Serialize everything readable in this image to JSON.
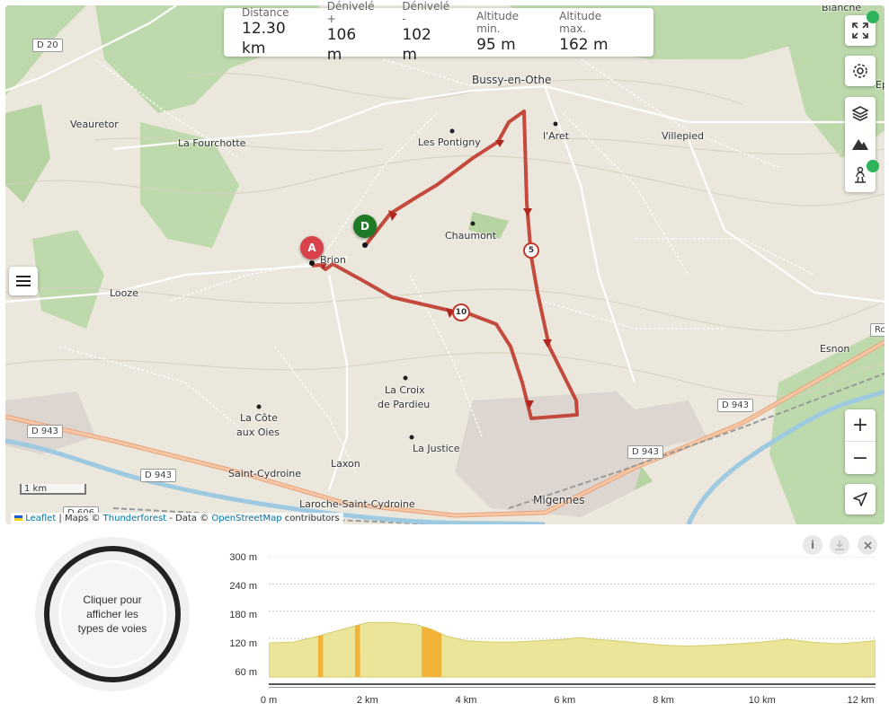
{
  "stats": [
    {
      "label": "Distance",
      "value": "12.30 km"
    },
    {
      "label": "Dénivelé +",
      "value": "106 m"
    },
    {
      "label": "Dénivelé -",
      "value": "102 m"
    },
    {
      "label": "Altitude min.",
      "value": "95 m"
    },
    {
      "label": "Altitude max.",
      "value": "162 m"
    }
  ],
  "places": {
    "bussy": "Bussy-en-Othe",
    "aret": "l'Aret",
    "villepied": "Villepied",
    "pontigny": "Les Pontigny",
    "veauretor": "Veauretor",
    "fourchotte": "La Fourchotte",
    "chaumont": "Chaumont",
    "brion": "Brion",
    "looze": "Looze",
    "esnon": "Esnon",
    "croix1": "La Croix",
    "croix2": "de Pardieu",
    "cote1": "La Côte",
    "cote2": "aux Oies",
    "justice": "La Justice",
    "laxon": "Laxon",
    "cydroine": "Saint-Cydroine",
    "migennes": "Migennes",
    "laroche": "Laroche-Saint-Cydroine",
    "blanche": "Blanche",
    "ep": "Ep"
  },
  "roads": {
    "d20": "D 20",
    "d943a": "D 943",
    "d943b": "D 943",
    "d943c": "D 943",
    "d943d": "D 943",
    "d606": "D 606",
    "rou": "Rou"
  },
  "markers": {
    "start": "A",
    "end": "D",
    "km5": "5",
    "km10": "10"
  },
  "scale": "1 km",
  "attribution": {
    "leaflet": "Leaflet",
    "maps": " | Maps © ",
    "thunderforest": "Thunderforest",
    "data": " - Data © ",
    "osm": "OpenStreetMap",
    "contrib": " contributors"
  },
  "controls": {
    "zoom_in": "+",
    "zoom_out": "−"
  },
  "donut": {
    "line1": "Cliquer pour",
    "line2": "afficher les",
    "line3": "types de voies"
  },
  "profile": {
    "y_ticks": [
      "300 m",
      "240 m",
      "180 m",
      "120 m",
      "60 m"
    ],
    "x_ticks": [
      "0 m",
      "2 km",
      "4 km",
      "6 km",
      "8 km",
      "10 km",
      "12 km"
    ]
  },
  "chart_data": {
    "type": "area",
    "x": [
      0,
      0.5,
      1,
      1.5,
      2,
      2.5,
      3,
      3.3,
      3.6,
      4,
      4.5,
      5,
      5.5,
      6,
      6.3,
      6.6,
      7,
      7.5,
      8,
      8.5,
      9,
      9.5,
      10,
      10.5,
      11,
      11.5,
      12,
      12.3
    ],
    "y": [
      110,
      112,
      125,
      140,
      155,
      155,
      150,
      140,
      125,
      115,
      112,
      112,
      115,
      118,
      122,
      118,
      115,
      110,
      105,
      103,
      105,
      108,
      112,
      118,
      112,
      108,
      112,
      115
    ],
    "ylim": [
      35,
      300
    ],
    "xlim": [
      0,
      12.3
    ],
    "highlights": [
      [
        1,
        1.1
      ],
      [
        1.75,
        1.85
      ],
      [
        3.1,
        3.5
      ]
    ],
    "colors": {
      "fill": "#ebe59a",
      "stroke": "#d5cc6c",
      "highlight": "#f2b33a"
    }
  },
  "colors": {
    "route": "#c0392b",
    "marker_a": "#d9414b",
    "marker_d": "#1e7a26"
  }
}
